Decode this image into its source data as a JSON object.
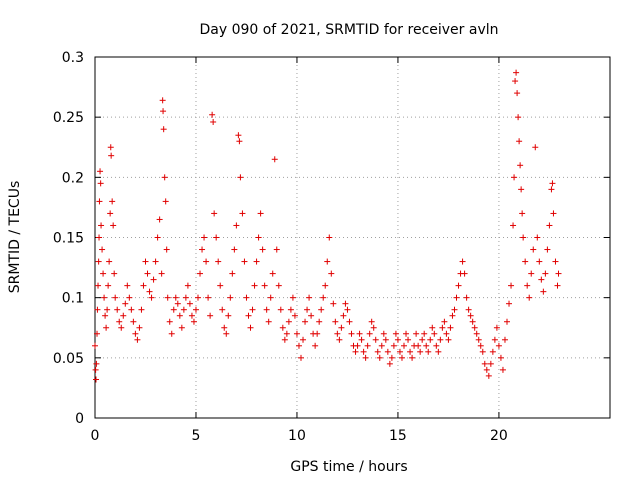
{
  "chart_data": {
    "type": "scatter",
    "title": "Day 090 of 2021, SRMTID for receiver avln",
    "xlabel": "GPS time / hours",
    "ylabel": "SRMTID / TECUs",
    "xlim": [
      0,
      25.5
    ],
    "ylim": [
      0,
      0.3
    ],
    "xticks": [
      0,
      5,
      10,
      15,
      20
    ],
    "xtick_labels": [
      "0",
      "5",
      "10",
      "15",
      "20"
    ],
    "yticks": [
      0,
      0.05,
      0.1,
      0.15,
      0.2,
      0.25,
      0.3
    ],
    "ytick_labels": [
      "0",
      "0.05",
      "0.1",
      "0.15",
      "0.2",
      "0.25",
      "0.3"
    ],
    "grid": true,
    "marker": "+",
    "color": "#e00000",
    "series": [
      {
        "name": "SRMTID",
        "points": [
          [
            0.0,
            0.06
          ],
          [
            0.03,
            0.04
          ],
          [
            0.05,
            0.032
          ],
          [
            0.07,
            0.045
          ],
          [
            0.1,
            0.07
          ],
          [
            0.12,
            0.09
          ],
          [
            0.15,
            0.11
          ],
          [
            0.18,
            0.13
          ],
          [
            0.2,
            0.15
          ],
          [
            0.22,
            0.18
          ],
          [
            0.25,
            0.205
          ],
          [
            0.28,
            0.195
          ],
          [
            0.3,
            0.16
          ],
          [
            0.35,
            0.14
          ],
          [
            0.4,
            0.12
          ],
          [
            0.45,
            0.1
          ],
          [
            0.5,
            0.085
          ],
          [
            0.55,
            0.075
          ],
          [
            0.6,
            0.09
          ],
          [
            0.65,
            0.11
          ],
          [
            0.7,
            0.13
          ],
          [
            0.75,
            0.17
          ],
          [
            0.78,
            0.225
          ],
          [
            0.8,
            0.218
          ],
          [
            0.85,
            0.18
          ],
          [
            0.9,
            0.16
          ],
          [
            0.95,
            0.12
          ],
          [
            1.0,
            0.1
          ],
          [
            1.1,
            0.09
          ],
          [
            1.2,
            0.08
          ],
          [
            1.3,
            0.075
          ],
          [
            1.4,
            0.085
          ],
          [
            1.5,
            0.095
          ],
          [
            1.6,
            0.11
          ],
          [
            1.7,
            0.1
          ],
          [
            1.8,
            0.09
          ],
          [
            1.9,
            0.08
          ],
          [
            2.0,
            0.07
          ],
          [
            2.1,
            0.065
          ],
          [
            2.2,
            0.075
          ],
          [
            2.3,
            0.09
          ],
          [
            2.4,
            0.11
          ],
          [
            2.5,
            0.13
          ],
          [
            2.6,
            0.12
          ],
          [
            2.7,
            0.105
          ],
          [
            2.8,
            0.1
          ],
          [
            2.9,
            0.115
          ],
          [
            3.0,
            0.13
          ],
          [
            3.1,
            0.15
          ],
          [
            3.2,
            0.165
          ],
          [
            3.3,
            0.12
          ],
          [
            3.35,
            0.264
          ],
          [
            3.37,
            0.255
          ],
          [
            3.4,
            0.24
          ],
          [
            3.45,
            0.2
          ],
          [
            3.5,
            0.18
          ],
          [
            3.55,
            0.14
          ],
          [
            3.6,
            0.1
          ],
          [
            3.7,
            0.08
          ],
          [
            3.8,
            0.07
          ],
          [
            3.9,
            0.09
          ],
          [
            4.0,
            0.1
          ],
          [
            4.1,
            0.095
          ],
          [
            4.2,
            0.085
          ],
          [
            4.3,
            0.075
          ],
          [
            4.4,
            0.09
          ],
          [
            4.5,
            0.1
          ],
          [
            4.6,
            0.11
          ],
          [
            4.7,
            0.095
          ],
          [
            4.8,
            0.085
          ],
          [
            4.9,
            0.08
          ],
          [
            5.0,
            0.09
          ],
          [
            5.1,
            0.1
          ],
          [
            5.2,
            0.12
          ],
          [
            5.3,
            0.14
          ],
          [
            5.4,
            0.15
          ],
          [
            5.5,
            0.13
          ],
          [
            5.6,
            0.1
          ],
          [
            5.7,
            0.085
          ],
          [
            5.8,
            0.252
          ],
          [
            5.85,
            0.246
          ],
          [
            5.9,
            0.17
          ],
          [
            6.0,
            0.15
          ],
          [
            6.1,
            0.13
          ],
          [
            6.2,
            0.11
          ],
          [
            6.3,
            0.09
          ],
          [
            6.4,
            0.075
          ],
          [
            6.5,
            0.07
          ],
          [
            6.6,
            0.085
          ],
          [
            6.7,
            0.1
          ],
          [
            6.8,
            0.12
          ],
          [
            6.9,
            0.14
          ],
          [
            7.0,
            0.16
          ],
          [
            7.1,
            0.235
          ],
          [
            7.15,
            0.23
          ],
          [
            7.2,
            0.2
          ],
          [
            7.3,
            0.17
          ],
          [
            7.4,
            0.13
          ],
          [
            7.5,
            0.1
          ],
          [
            7.6,
            0.085
          ],
          [
            7.7,
            0.075
          ],
          [
            7.8,
            0.09
          ],
          [
            7.9,
            0.11
          ],
          [
            8.0,
            0.13
          ],
          [
            8.1,
            0.15
          ],
          [
            8.2,
            0.17
          ],
          [
            8.3,
            0.14
          ],
          [
            8.4,
            0.11
          ],
          [
            8.5,
            0.09
          ],
          [
            8.6,
            0.08
          ],
          [
            8.7,
            0.1
          ],
          [
            8.8,
            0.12
          ],
          [
            8.9,
            0.215
          ],
          [
            9.0,
            0.14
          ],
          [
            9.1,
            0.11
          ],
          [
            9.2,
            0.09
          ],
          [
            9.3,
            0.075
          ],
          [
            9.4,
            0.065
          ],
          [
            9.5,
            0.07
          ],
          [
            9.6,
            0.08
          ],
          [
            9.7,
            0.09
          ],
          [
            9.8,
            0.1
          ],
          [
            9.9,
            0.085
          ],
          [
            10.0,
            0.07
          ],
          [
            10.1,
            0.06
          ],
          [
            10.2,
            0.05
          ],
          [
            10.3,
            0.065
          ],
          [
            10.4,
            0.08
          ],
          [
            10.5,
            0.09
          ],
          [
            10.6,
            0.1
          ],
          [
            10.7,
            0.085
          ],
          [
            10.8,
            0.07
          ],
          [
            10.9,
            0.06
          ],
          [
            11.0,
            0.07
          ],
          [
            11.1,
            0.08
          ],
          [
            11.2,
            0.09
          ],
          [
            11.3,
            0.1
          ],
          [
            11.4,
            0.11
          ],
          [
            11.5,
            0.13
          ],
          [
            11.6,
            0.15
          ],
          [
            11.7,
            0.12
          ],
          [
            11.8,
            0.095
          ],
          [
            11.9,
            0.08
          ],
          [
            12.0,
            0.07
          ],
          [
            12.1,
            0.065
          ],
          [
            12.2,
            0.075
          ],
          [
            12.3,
            0.085
          ],
          [
            12.4,
            0.095
          ],
          [
            12.5,
            0.09
          ],
          [
            12.6,
            0.08
          ],
          [
            12.7,
            0.07
          ],
          [
            12.8,
            0.06
          ],
          [
            12.9,
            0.055
          ],
          [
            13.0,
            0.06
          ],
          [
            13.1,
            0.07
          ],
          [
            13.2,
            0.065
          ],
          [
            13.3,
            0.055
          ],
          [
            13.4,
            0.05
          ],
          [
            13.5,
            0.06
          ],
          [
            13.6,
            0.07
          ],
          [
            13.7,
            0.08
          ],
          [
            13.8,
            0.075
          ],
          [
            13.9,
            0.065
          ],
          [
            14.0,
            0.055
          ],
          [
            14.1,
            0.05
          ],
          [
            14.2,
            0.06
          ],
          [
            14.3,
            0.07
          ],
          [
            14.4,
            0.065
          ],
          [
            14.5,
            0.055
          ],
          [
            14.6,
            0.045
          ],
          [
            14.7,
            0.05
          ],
          [
            14.8,
            0.06
          ],
          [
            14.9,
            0.07
          ],
          [
            15.0,
            0.065
          ],
          [
            15.1,
            0.055
          ],
          [
            15.2,
            0.05
          ],
          [
            15.3,
            0.06
          ],
          [
            15.4,
            0.07
          ],
          [
            15.5,
            0.065
          ],
          [
            15.6,
            0.055
          ],
          [
            15.7,
            0.05
          ],
          [
            15.8,
            0.06
          ],
          [
            15.9,
            0.07
          ],
          [
            16.0,
            0.06
          ],
          [
            16.1,
            0.055
          ],
          [
            16.2,
            0.065
          ],
          [
            16.3,
            0.07
          ],
          [
            16.4,
            0.06
          ],
          [
            16.5,
            0.055
          ],
          [
            16.6,
            0.065
          ],
          [
            16.7,
            0.075
          ],
          [
            16.8,
            0.07
          ],
          [
            16.9,
            0.06
          ],
          [
            17.0,
            0.055
          ],
          [
            17.1,
            0.065
          ],
          [
            17.2,
            0.075
          ],
          [
            17.3,
            0.08
          ],
          [
            17.4,
            0.07
          ],
          [
            17.5,
            0.065
          ],
          [
            17.6,
            0.075
          ],
          [
            17.7,
            0.085
          ],
          [
            17.8,
            0.09
          ],
          [
            17.9,
            0.1
          ],
          [
            18.0,
            0.11
          ],
          [
            18.1,
            0.12
          ],
          [
            18.2,
            0.13
          ],
          [
            18.3,
            0.12
          ],
          [
            18.4,
            0.1
          ],
          [
            18.5,
            0.09
          ],
          [
            18.6,
            0.085
          ],
          [
            18.7,
            0.08
          ],
          [
            18.8,
            0.075
          ],
          [
            18.9,
            0.07
          ],
          [
            19.0,
            0.065
          ],
          [
            19.1,
            0.06
          ],
          [
            19.2,
            0.055
          ],
          [
            19.3,
            0.045
          ],
          [
            19.4,
            0.04
          ],
          [
            19.5,
            0.035
          ],
          [
            19.6,
            0.045
          ],
          [
            19.7,
            0.055
          ],
          [
            19.8,
            0.065
          ],
          [
            19.9,
            0.075
          ],
          [
            20.0,
            0.06
          ],
          [
            20.1,
            0.05
          ],
          [
            20.2,
            0.04
          ],
          [
            20.3,
            0.065
          ],
          [
            20.4,
            0.08
          ],
          [
            20.5,
            0.095
          ],
          [
            20.6,
            0.11
          ],
          [
            20.7,
            0.16
          ],
          [
            20.75,
            0.2
          ],
          [
            20.8,
            0.28
          ],
          [
            20.85,
            0.287
          ],
          [
            20.9,
            0.27
          ],
          [
            20.95,
            0.25
          ],
          [
            21.0,
            0.23
          ],
          [
            21.05,
            0.21
          ],
          [
            21.1,
            0.19
          ],
          [
            21.15,
            0.17
          ],
          [
            21.2,
            0.15
          ],
          [
            21.3,
            0.13
          ],
          [
            21.4,
            0.11
          ],
          [
            21.5,
            0.1
          ],
          [
            21.6,
            0.12
          ],
          [
            21.7,
            0.14
          ],
          [
            21.8,
            0.225
          ],
          [
            21.9,
            0.15
          ],
          [
            22.0,
            0.13
          ],
          [
            22.1,
            0.115
          ],
          [
            22.2,
            0.105
          ],
          [
            22.3,
            0.12
          ],
          [
            22.4,
            0.14
          ],
          [
            22.5,
            0.16
          ],
          [
            22.6,
            0.19
          ],
          [
            22.65,
            0.195
          ],
          [
            22.7,
            0.17
          ],
          [
            22.8,
            0.13
          ],
          [
            22.9,
            0.11
          ],
          [
            22.95,
            0.12
          ]
        ]
      }
    ]
  }
}
